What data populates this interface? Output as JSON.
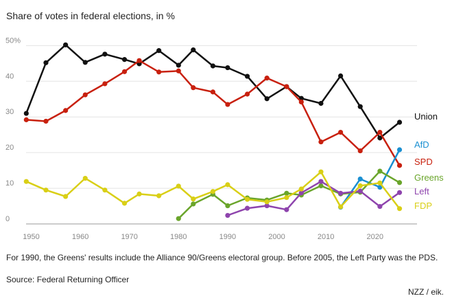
{
  "title": "Share of votes in federal elections, in %",
  "footnote": "For 1990, the Greens' results include the Alliance 90/Greens electoral group. Before 2005, the Left Party was the PDS.",
  "source": "Source: Federal Returning Officer",
  "credit": "NZZ / eik.",
  "chart_data": {
    "type": "line",
    "title": "Share of votes in federal elections, in %",
    "xlabel": "",
    "ylabel": "",
    "xlim": [
      1947,
      2028
    ],
    "ylim": [
      0,
      52
    ],
    "y_ticks": [
      0,
      10,
      20,
      30,
      40,
      50
    ],
    "y_tick_labels": [
      "0",
      "10",
      "20",
      "30",
      "40",
      "50%"
    ],
    "x_ticks": [
      1950,
      1960,
      1970,
      1980,
      1990,
      2000,
      2010,
      2020
    ],
    "x_tick_labels": [
      "1950",
      "1960",
      "1970",
      "1980",
      "1990",
      "2000",
      "2010",
      "2020"
    ],
    "grid": true,
    "legend": "labels at line ends (right)",
    "series": [
      {
        "name": "Union",
        "color": "#111111",
        "x": [
          1949,
          1953,
          1957,
          1961,
          1965,
          1969,
          1972,
          1976,
          1980,
          1983,
          1987,
          1990,
          1994,
          1998,
          2002,
          2005,
          2009,
          2013,
          2017,
          2021,
          2025
        ],
        "values": [
          31.0,
          45.2,
          50.2,
          45.3,
          47.6,
          46.1,
          44.9,
          48.6,
          44.5,
          48.8,
          44.3,
          43.8,
          41.4,
          35.1,
          38.5,
          35.2,
          33.8,
          41.5,
          32.9,
          24.1,
          28.5
        ]
      },
      {
        "name": "SPD",
        "color": "#c8200e",
        "x": [
          1949,
          1953,
          1957,
          1961,
          1965,
          1969,
          1972,
          1976,
          1980,
          1983,
          1987,
          1990,
          1994,
          1998,
          2002,
          2005,
          2009,
          2013,
          2017,
          2021,
          2025
        ],
        "values": [
          29.2,
          28.8,
          31.8,
          36.2,
          39.3,
          42.7,
          45.8,
          42.6,
          42.9,
          38.2,
          37.0,
          33.5,
          36.4,
          40.9,
          38.5,
          34.2,
          23.0,
          25.7,
          20.5,
          25.7,
          16.4
        ]
      },
      {
        "name": "AfD",
        "color": "#1a8fd1",
        "x": [
          2013,
          2017,
          2021,
          2025
        ],
        "values": [
          4.7,
          12.6,
          10.3,
          20.8
        ]
      },
      {
        "name": "Greens",
        "color": "#6aa52b",
        "x": [
          1980,
          1983,
          1987,
          1990,
          1994,
          1998,
          2002,
          2005,
          2009,
          2013,
          2017,
          2021,
          2025
        ],
        "values": [
          1.5,
          5.6,
          8.3,
          5.1,
          7.3,
          6.7,
          8.6,
          8.1,
          10.7,
          8.4,
          8.9,
          14.8,
          11.6
        ]
      },
      {
        "name": "Left",
        "color": "#8e44ad",
        "x": [
          1990,
          1994,
          1998,
          2002,
          2005,
          2009,
          2013,
          2017,
          2021,
          2025
        ],
        "values": [
          2.4,
          4.4,
          5.1,
          4.0,
          8.7,
          11.9,
          8.6,
          9.2,
          4.9,
          8.8
        ]
      },
      {
        "name": "FDP",
        "color": "#d9cf16",
        "x": [
          1949,
          1953,
          1957,
          1961,
          1965,
          1969,
          1972,
          1976,
          1980,
          1983,
          1987,
          1990,
          1994,
          1998,
          2002,
          2005,
          2009,
          2013,
          2017,
          2021,
          2025
        ],
        "values": [
          11.9,
          9.5,
          7.7,
          12.8,
          9.5,
          5.8,
          8.4,
          7.9,
          10.6,
          7.0,
          9.1,
          11.0,
          6.9,
          6.2,
          7.4,
          9.8,
          14.6,
          4.8,
          10.7,
          11.5,
          4.3
        ]
      }
    ]
  }
}
